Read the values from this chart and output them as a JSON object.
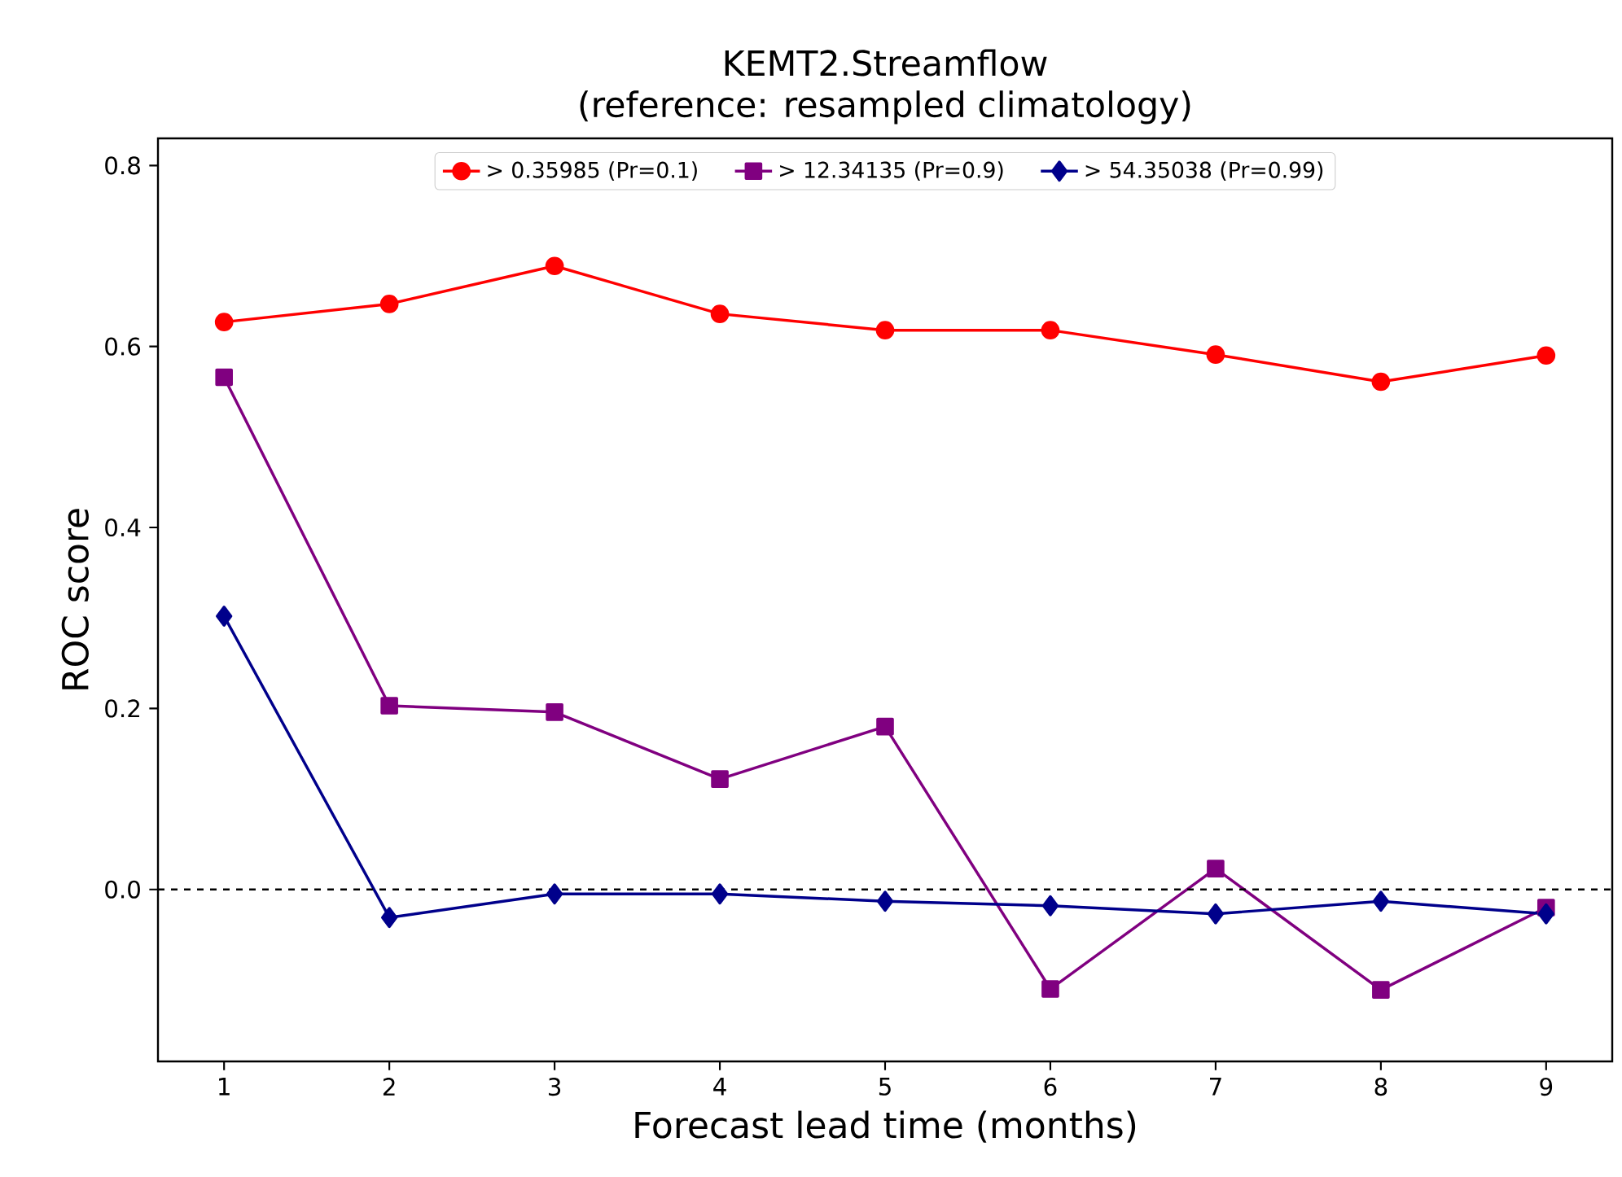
{
  "chart_data": {
    "type": "line",
    "title": "KEMT2.Streamflow\n(reference: resampled climatology)",
    "xlabel": "Forecast lead time (months)",
    "ylabel": "ROC score",
    "x": [
      1,
      2,
      3,
      4,
      5,
      6,
      7,
      8,
      9
    ],
    "series": [
      {
        "name": "> 0.35985 (Pr=0.1)",
        "color": "#ff0000",
        "marker": "circle",
        "values": [
          0.627,
          0.647,
          0.689,
          0.636,
          0.618,
          0.618,
          0.591,
          0.561,
          0.59
        ]
      },
      {
        "name": "> 12.34135 (Pr=0.9)",
        "color": "#800080",
        "marker": "square",
        "values": [
          0.566,
          0.203,
          0.196,
          0.122,
          0.18,
          -0.11,
          0.023,
          -0.111,
          -0.02
        ]
      },
      {
        "name": "> 54.35038 (Pr=0.99)",
        "color": "#00008b",
        "marker": "diamond",
        "values": [
          0.302,
          -0.031,
          -0.005,
          -0.005,
          -0.013,
          -0.018,
          -0.027,
          -0.013,
          -0.027
        ]
      }
    ],
    "xlim": [
      0.6,
      9.4
    ],
    "ylim": [
      -0.19,
      0.83
    ],
    "xticks": [
      1,
      2,
      3,
      4,
      5,
      6,
      7,
      8,
      9
    ],
    "yticks": [
      {
        "value": 0.0,
        "label": "0.0"
      },
      {
        "value": 0.2,
        "label": "0.2"
      },
      {
        "value": 0.4,
        "label": "0.4"
      },
      {
        "value": 0.6,
        "label": "0.6"
      },
      {
        "value": 0.8,
        "label": "0.8"
      }
    ],
    "ref_lines": [
      {
        "axis": "y",
        "value": 0,
        "color": "#000000",
        "line_style": "dashed"
      }
    ],
    "legend": "top",
    "grid": false
  }
}
